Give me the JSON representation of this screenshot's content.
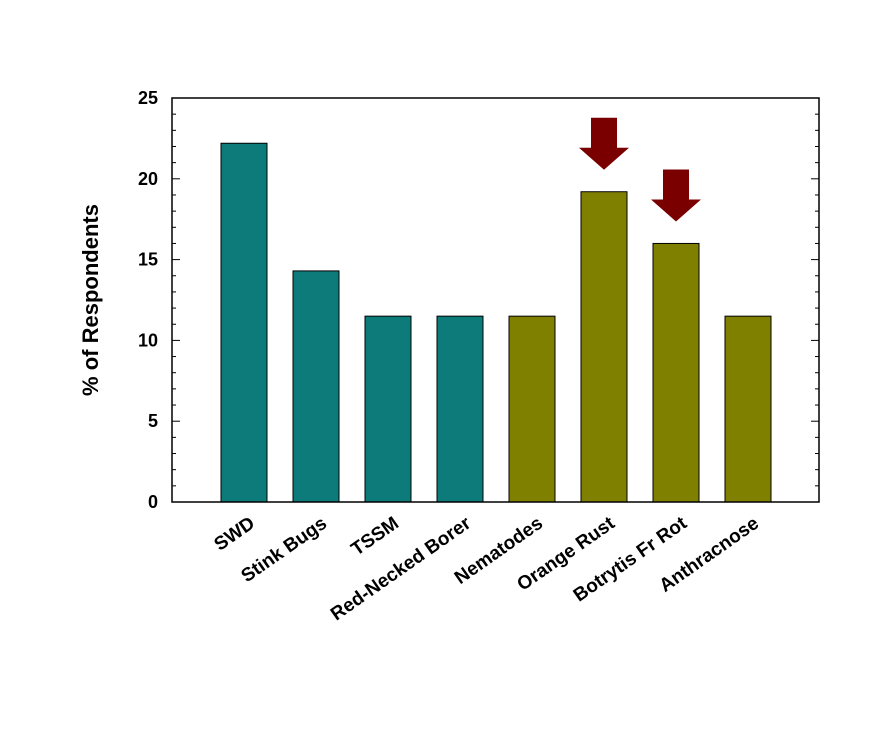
{
  "chart_data": {
    "type": "bar",
    "title": "",
    "xlabel": "",
    "ylabel": "% of Respondents",
    "ylim": [
      0,
      25
    ],
    "yticks": [
      0,
      5,
      10,
      15,
      20,
      25
    ],
    "grid": false,
    "categories": [
      "SWD",
      "Stink Bugs",
      "TSSM",
      "Red-Necked Borer",
      "Nematodes",
      "Orange Rust",
      "Botrytis Fr Rot",
      "Anthracnose"
    ],
    "values": [
      22.2,
      14.3,
      11.5,
      11.5,
      11.5,
      19.2,
      16.0,
      11.5
    ],
    "bar_colors": [
      "#0e7b7b",
      "#0e7b7b",
      "#0e7b7b",
      "#0e7b7b",
      "#808000",
      "#808000",
      "#808000",
      "#808000"
    ],
    "highlighted_categories": [
      "Orange Rust",
      "Botrytis Fr Rot"
    ],
    "highlight_marker": "down-arrow",
    "highlight_color": "#7a0000"
  }
}
